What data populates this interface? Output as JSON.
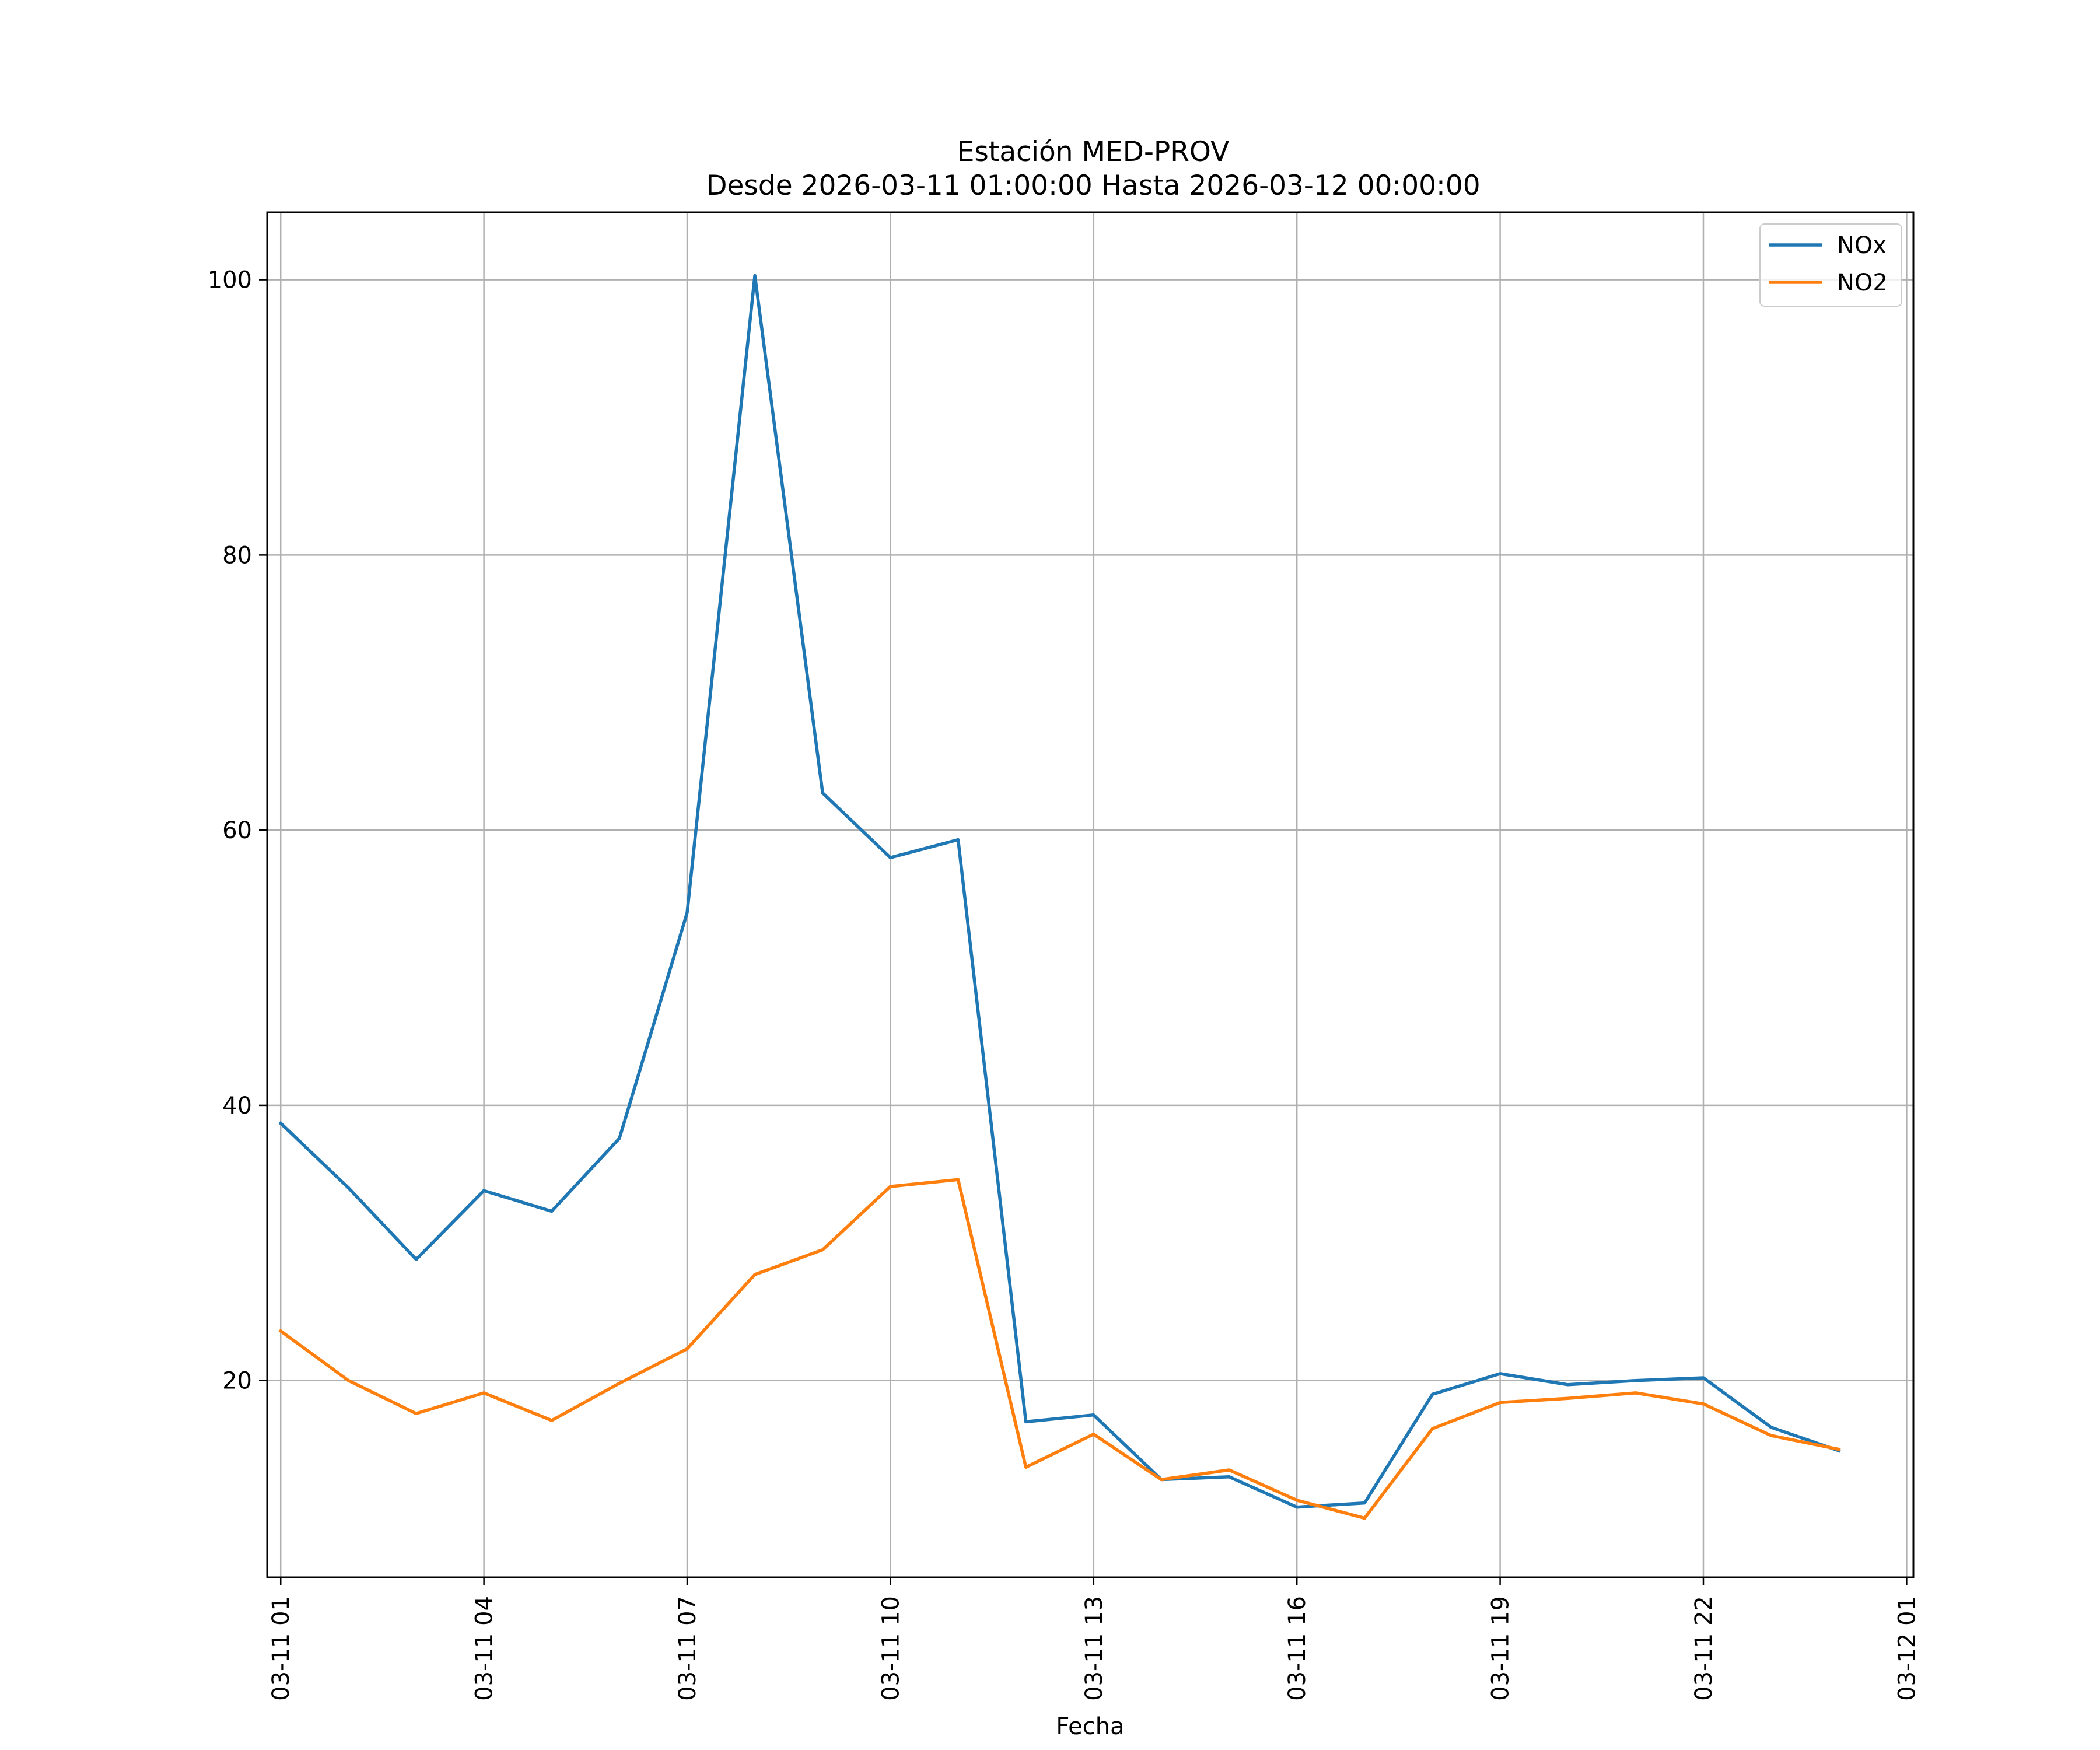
{
  "chart_data": {
    "type": "line",
    "title": "Estación MED-PROV",
    "subtitle": "Desde 2026-03-11 01:00:00 Hasta 2026-03-12 00:00:00",
    "xlabel": "Fecha",
    "ylabel": "",
    "grid": true,
    "legend_position": "top-right",
    "x": [
      "03-11 01",
      "03-11 02",
      "03-11 03",
      "03-11 04",
      "03-11 05",
      "03-11 06",
      "03-11 07",
      "03-11 08",
      "03-11 09",
      "03-11 10",
      "03-11 11",
      "03-11 12",
      "03-11 13",
      "03-11 14",
      "03-11 15",
      "03-11 16",
      "03-11 17",
      "03-11 18",
      "03-11 19",
      "03-11 20",
      "03-11 21",
      "03-11 22",
      "03-11 23",
      "03-12 00"
    ],
    "x_ticks": [
      "03-11 01",
      "03-11 04",
      "03-11 07",
      "03-11 10",
      "03-11 13",
      "03-11 16",
      "03-11 19",
      "03-11 22",
      "03-12 01"
    ],
    "x_range_hours": [
      -0.2,
      24.1
    ],
    "y_ticks": [
      20,
      40,
      60,
      80,
      100
    ],
    "ylim": [
      5.7,
      104.9
    ],
    "series": [
      {
        "name": "NOx",
        "color": "#1f77b4",
        "values": [
          38.7,
          34.0,
          28.8,
          33.8,
          32.3,
          37.6,
          54.0,
          100.3,
          62.7,
          58.0,
          59.3,
          17.0,
          17.5,
          12.8,
          13.0,
          10.8,
          11.1,
          19.0,
          20.5,
          19.7,
          20.0,
          20.2,
          16.6,
          14.9
        ]
      },
      {
        "name": "NO2",
        "color": "#ff7f0e",
        "values": [
          23.6,
          20.0,
          17.6,
          19.1,
          17.1,
          19.8,
          22.3,
          27.7,
          29.5,
          34.1,
          34.6,
          13.7,
          16.1,
          12.8,
          13.5,
          11.3,
          10.0,
          16.5,
          18.4,
          18.7,
          19.1,
          18.3,
          16.0,
          15.0
        ]
      }
    ]
  }
}
